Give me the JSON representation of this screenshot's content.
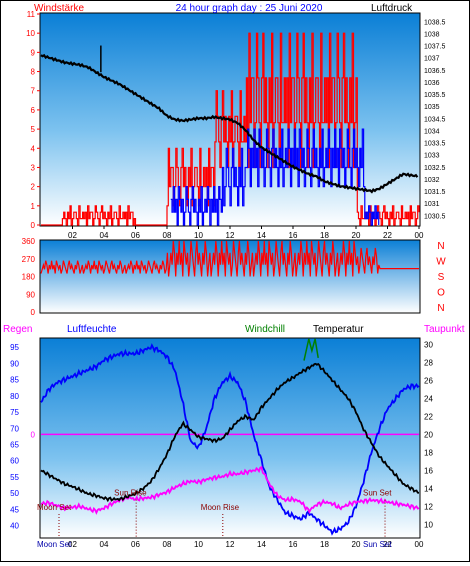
{
  "header": {
    "left_label": "Windstärke",
    "title": "24 hour graph day : 25 Juni 2020",
    "right_label": "Luftdruck"
  },
  "colors": {
    "wind": "#ff0000",
    "gust": "#0000ff",
    "pressure": "#000000",
    "direction": "#ff0000",
    "humidity": "#0000ff",
    "temperature": "#000000",
    "windchill": "#008000",
    "dewpoint": "#ff00ff",
    "rain": "#ff00ff",
    "frame": "#000000"
  },
  "x_ticks": [
    "02",
    "04",
    "06",
    "08",
    "10",
    "12",
    "14",
    "16",
    "18",
    "20",
    "22",
    "00"
  ],
  "chart_data": [
    {
      "type": "bar",
      "title": "Windstärke / Luftdruck",
      "y_left": {
        "label": "Windstärke",
        "ticks": [
          0,
          1,
          2,
          3,
          4,
          5,
          6,
          7,
          8,
          9,
          10,
          11
        ],
        "range": [
          0,
          11
        ]
      },
      "y_right": {
        "label": "Luftdruck",
        "ticks": [
          1030.5,
          1031,
          1031.5,
          1032,
          1032.5,
          1033,
          1033.5,
          1034,
          1034.5,
          1035,
          1035.5,
          1036,
          1036.5,
          1037,
          1037.5,
          1038,
          1038.5
        ],
        "range": [
          1030.1,
          1038.8
        ]
      },
      "series": [
        {
          "name": "Windstärke",
          "style": "bars",
          "pattern": [
            1,
            2,
            1,
            2,
            0,
            3,
            1,
            2,
            2,
            0,
            1,
            3,
            2,
            1,
            0,
            2,
            3,
            1,
            2,
            1,
            0,
            2,
            1,
            3,
            0,
            1,
            2,
            2,
            1,
            0,
            3,
            1
          ],
          "segments": [
            {
              "from": 0,
              "to": 1.3,
              "base": 0,
              "amp": 0
            },
            {
              "from": 1.3,
              "to": 6.0,
              "base": 0,
              "amp": 1
            },
            {
              "from": 6.0,
              "to": 8.0,
              "base": 0,
              "amp": 0
            },
            {
              "from": 8.0,
              "to": 11.0,
              "base": 1,
              "amp": 3
            },
            {
              "from": 11.0,
              "to": 13.0,
              "base": 3,
              "amp": 4
            },
            {
              "from": 13.0,
              "to": 20.0,
              "base": 3,
              "amp": 7
            },
            {
              "from": 20.0,
              "to": 24.0,
              "base": 0,
              "amp": 1
            }
          ]
        },
        {
          "name": "Böen",
          "style": "bars",
          "pattern": [
            0,
            1,
            2,
            1,
            3,
            2,
            0,
            2,
            1,
            3,
            1,
            2,
            0,
            3,
            2,
            1,
            2,
            0,
            1,
            3,
            2,
            1,
            0,
            2,
            3,
            1,
            2,
            1,
            0,
            2,
            1,
            3
          ],
          "segments": [
            {
              "from": 8.2,
              "to": 11.5,
              "base": 0,
              "amp": 2
            },
            {
              "from": 11.5,
              "to": 13.0,
              "base": 1,
              "amp": 3
            },
            {
              "from": 13.0,
              "to": 20.5,
              "base": 2,
              "amp": 3
            },
            {
              "from": 20.5,
              "to": 21.5,
              "base": 0,
              "amp": 1
            }
          ]
        },
        {
          "name": "Luftdruck",
          "style": "line",
          "x": [
            0,
            0.5,
            1,
            1.5,
            2,
            2.5,
            3,
            3.5,
            4,
            4.5,
            5,
            5.5,
            6,
            6.5,
            7,
            7.5,
            8,
            8.5,
            9,
            9.5,
            10,
            10.5,
            11,
            11.5,
            12,
            12.5,
            13,
            13.5,
            14,
            14.5,
            15,
            15.5,
            16,
            16.5,
            17,
            17.5,
            18,
            18.5,
            19,
            19.5,
            20,
            20.5,
            21,
            21.5,
            22,
            22.5,
            23,
            23.5,
            24
          ],
          "y": [
            1037.1,
            1037.0,
            1036.9,
            1036.8,
            1036.75,
            1036.7,
            1036.6,
            1036.4,
            1036.2,
            1036.05,
            1035.9,
            1035.7,
            1035.5,
            1035.3,
            1035.1,
            1034.9,
            1034.6,
            1034.45,
            1034.4,
            1034.45,
            1034.5,
            1034.5,
            1034.55,
            1034.5,
            1034.45,
            1034.3,
            1034.0,
            1033.6,
            1033.3,
            1033.1,
            1032.9,
            1032.7,
            1032.5,
            1032.35,
            1032.2,
            1032.1,
            1031.9,
            1031.8,
            1031.7,
            1031.65,
            1031.6,
            1031.55,
            1031.5,
            1031.6,
            1031.8,
            1032.0,
            1032.2,
            1032.15,
            1032.1
          ]
        }
      ]
    },
    {
      "type": "line",
      "title": "Windrichtung",
      "y_ticks": [
        0,
        90,
        180,
        270,
        360
      ],
      "y_range": [
        0,
        360
      ],
      "compass_labels": [
        "N",
        "W",
        "S",
        "O",
        "N"
      ],
      "series": [
        {
          "name": "Windrichtung",
          "pattern": [
            0,
            1,
            2,
            1,
            3,
            2,
            0,
            2,
            1,
            3,
            1,
            2,
            0,
            3,
            2,
            1,
            2,
            0,
            1,
            3,
            2,
            1,
            0,
            2,
            3,
            1,
            2,
            1,
            0,
            2,
            1,
            3,
            2,
            0,
            1,
            2
          ],
          "segments": [
            {
              "from": 0,
              "to": 8.0,
              "base": 195,
              "amp": 65
            },
            {
              "from": 8.0,
              "to": 20.0,
              "base": 180,
              "amp": 180
            },
            {
              "from": 20.0,
              "to": 21.5,
              "base": 195,
              "amp": 130
            },
            {
              "from": 21.5,
              "to": 24.0,
              "base": 220,
              "amp": 0
            }
          ]
        }
      ]
    },
    {
      "type": "line",
      "title": "Regen / Luftfeuchte / Temperatur",
      "legend": [
        "Regen",
        "Luftfeuchte",
        "Windchill",
        "Temperatur",
        "Taupunkt"
      ],
      "y_left": {
        "label": "Luftfeuchte",
        "ticks": [
          40,
          45,
          50,
          55,
          60,
          65,
          70,
          75,
          80,
          85,
          90,
          95
        ],
        "range": [
          36.5,
          97.5
        ]
      },
      "y_right": {
        "label": "Temperatur",
        "ticks": [
          10,
          12,
          14,
          16,
          18,
          20,
          22,
          24,
          26,
          28,
          30
        ],
        "range": [
          8.6,
          30.6
        ]
      },
      "x": [
        0,
        0.5,
        1,
        1.5,
        2,
        2.5,
        3,
        3.5,
        4,
        4.5,
        5,
        5.5,
        6,
        6.5,
        7,
        7.5,
        8,
        8.5,
        9,
        9.5,
        10,
        10.5,
        11,
        11.5,
        12,
        12.5,
        13,
        13.5,
        14,
        14.5,
        15,
        15.5,
        16,
        16.5,
        17,
        17.5,
        18,
        18.5,
        19,
        19.5,
        20,
        20.5,
        21,
        21.5,
        22,
        22.5,
        23,
        23.5,
        24
      ],
      "series": [
        {
          "name": "Luftfeuchte",
          "y": [
            78,
            82,
            84,
            85,
            86,
            87,
            88,
            89,
            91,
            92,
            93,
            93,
            93,
            94,
            95,
            94,
            92,
            88,
            78,
            66,
            64,
            70,
            79,
            84,
            86,
            84,
            78,
            68,
            60,
            52,
            48,
            44,
            43,
            42,
            44,
            42,
            40,
            38,
            39,
            41,
            46,
            54,
            63,
            70,
            76,
            79,
            82,
            83,
            83
          ]
        },
        {
          "name": "Temperatur",
          "y": [
            16.0,
            15.5,
            15.0,
            14.5,
            14.2,
            13.8,
            13.4,
            13.2,
            12.9,
            12.8,
            12.8,
            13.1,
            13.4,
            14.0,
            14.8,
            16.2,
            17.8,
            19.8,
            21.2,
            20.5,
            19.7,
            19.5,
            19.3,
            19.5,
            20.5,
            21.5,
            22.0,
            21.6,
            23.0,
            24.0,
            25.0,
            25.8,
            26.3,
            26.9,
            27.4,
            27.9,
            27.0,
            26.0,
            25.0,
            24.0,
            22.5,
            20.5,
            19.0,
            17.5,
            16.5,
            15.5,
            14.5,
            14.0,
            13.5
          ]
        },
        {
          "name": "Taupunkt",
          "y": [
            12.3,
            12.4,
            12.1,
            11.8,
            11.9,
            12.0,
            11.7,
            11.5,
            11.8,
            12.3,
            12.7,
            13.0,
            12.8,
            12.9,
            13.0,
            13.3,
            13.6,
            14.1,
            14.5,
            14.8,
            14.7,
            15.0,
            15.2,
            15.3,
            15.6,
            15.6,
            15.8,
            16.0,
            16.2,
            14.5,
            13.2,
            12.7,
            12.8,
            12.5,
            11.5,
            12.2,
            12.5,
            12.3,
            11.8,
            12.2,
            12.5,
            12.6,
            12.7,
            12.6,
            12.5,
            12.3,
            12.2,
            12.0,
            11.8
          ]
        },
        {
          "name": "Windchill",
          "x": [
            16.7,
            17.0,
            17.2,
            17.4,
            17.6
          ],
          "y": [
            28.2,
            30.6,
            29.3,
            30.6,
            28.5
          ]
        },
        {
          "name": "Regen",
          "level": 20
        }
      ],
      "annotations": [
        {
          "label": "Moon Set",
          "x": 0.0,
          "y": 11.6
        },
        {
          "label": "Sun Rise",
          "x": 4.9,
          "y": 13.2
        },
        {
          "label": "Moon Rise",
          "x": 10.4,
          "y": 11.6
        },
        {
          "label": "Sun Set",
          "x": 20.7,
          "y": 13.2
        }
      ],
      "x_tick_overlaps": {
        "moon_set": "Moon Set",
        "moon_rise": "Moon Rise",
        "sun_set": "Sun Set"
      }
    }
  ]
}
